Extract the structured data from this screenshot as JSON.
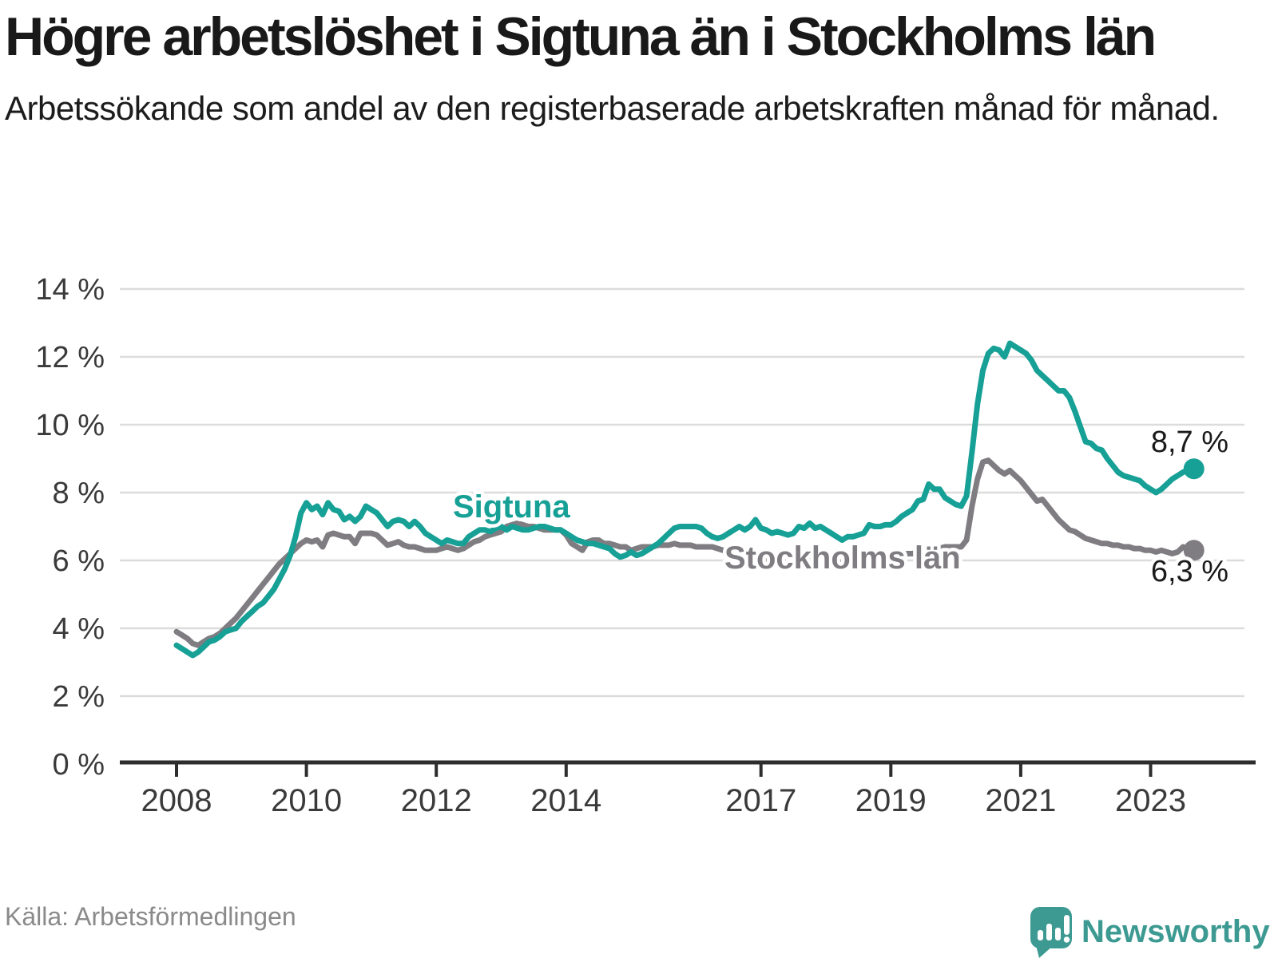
{
  "header": {
    "title": "Högre arbetslöshet i Sigtuna än i Stockholms län",
    "subtitle": "Arbetssökande som andel av den registerbaserade arbetskraften månad för månad."
  },
  "footer": {
    "source": "Källa: Arbetsförmedlingen",
    "logo_text": "Newsworthy"
  },
  "colors": {
    "sigtuna": "#16a096",
    "stockholm": "#7f7d81",
    "gridline": "#dcdcdc",
    "axis": "#2d2d2d",
    "tick_label": "#3a3a3a",
    "value_label": "#1a1a1a",
    "source_text": "#8a8a8a",
    "logo_teal": "#3d9a92"
  },
  "chart_data": {
    "type": "line",
    "title": "Högre arbetslöshet i Sigtuna än i Stockholms län",
    "subtitle": "Arbetssökande som andel av den registerbaserade arbetskraften månad för månad.",
    "x_unit": "month",
    "x_start_year": 2008,
    "x_start_month": 1,
    "x_end_year": 2023,
    "x_end_month": 9,
    "ylim": [
      0,
      14
    ],
    "grid": true,
    "x_tick_years": [
      2008,
      2010,
      2012,
      2014,
      2017,
      2019,
      2021,
      2023
    ],
    "y_tick_values": [
      14,
      12,
      10,
      8,
      6,
      4,
      2,
      0
    ],
    "y_tick_labels": [
      "14 %",
      "12 %",
      "10 %",
      "8 %",
      "6 %",
      "4 %",
      "2 %",
      "0 %"
    ],
    "series": [
      {
        "name": "Sigtuna",
        "color": "#16a096",
        "end_label": "8,7 %",
        "end_value": 8.7,
        "values": [
          3.5,
          3.4,
          3.3,
          3.2,
          3.3,
          3.45,
          3.6,
          3.65,
          3.75,
          3.9,
          3.95,
          4.0,
          4.2,
          4.35,
          4.5,
          4.65,
          4.75,
          4.95,
          5.15,
          5.45,
          5.75,
          6.15,
          6.7,
          7.4,
          7.7,
          7.5,
          7.6,
          7.35,
          7.7,
          7.5,
          7.45,
          7.2,
          7.3,
          7.15,
          7.3,
          7.6,
          7.5,
          7.4,
          7.2,
          7.0,
          7.15,
          7.2,
          7.15,
          7.0,
          7.15,
          7.0,
          6.8,
          6.7,
          6.6,
          6.5,
          6.6,
          6.55,
          6.5,
          6.5,
          6.7,
          6.8,
          6.9,
          6.9,
          6.85,
          6.95,
          7.0,
          6.9,
          7.0,
          6.95,
          6.9,
          6.9,
          6.95,
          7.0,
          7.0,
          6.95,
          6.9,
          6.9,
          6.8,
          6.7,
          6.6,
          6.55,
          6.5,
          6.5,
          6.45,
          6.4,
          6.35,
          6.2,
          6.1,
          6.15,
          6.25,
          6.15,
          6.2,
          6.3,
          6.4,
          6.5,
          6.65,
          6.8,
          6.95,
          7.0,
          7.0,
          7.0,
          7.0,
          6.95,
          6.8,
          6.7,
          6.65,
          6.7,
          6.8,
          6.9,
          7.0,
          6.9,
          7.0,
          7.2,
          6.95,
          6.9,
          6.8,
          6.85,
          6.8,
          6.75,
          6.8,
          7.0,
          6.95,
          7.1,
          6.95,
          7.0,
          6.9,
          6.8,
          6.7,
          6.6,
          6.7,
          6.7,
          6.75,
          6.8,
          7.05,
          7.0,
          7.0,
          7.05,
          7.05,
          7.15,
          7.3,
          7.4,
          7.5,
          7.75,
          7.8,
          8.25,
          8.1,
          8.1,
          7.85,
          7.75,
          7.65,
          7.6,
          7.9,
          9.2,
          10.6,
          11.6,
          12.1,
          12.25,
          12.2,
          12.0,
          12.4,
          12.3,
          12.2,
          12.1,
          11.9,
          11.6,
          11.45,
          11.3,
          11.15,
          11.0,
          11.0,
          10.8,
          10.4,
          9.95,
          9.5,
          9.45,
          9.3,
          9.25,
          9.0,
          8.8,
          8.6,
          8.5,
          8.45,
          8.4,
          8.35,
          8.2,
          8.1,
          8.0,
          8.1,
          8.25,
          8.4,
          8.5,
          8.6,
          8.65,
          8.7
        ]
      },
      {
        "name": "Stockholms län",
        "color": "#7f7d81",
        "end_label": "6,3 %",
        "end_value": 6.3,
        "values": [
          3.9,
          3.8,
          3.7,
          3.55,
          3.5,
          3.6,
          3.7,
          3.75,
          3.85,
          4.0,
          4.15,
          4.3,
          4.5,
          4.7,
          4.9,
          5.1,
          5.3,
          5.5,
          5.7,
          5.9,
          6.05,
          6.2,
          6.35,
          6.5,
          6.6,
          6.55,
          6.6,
          6.4,
          6.75,
          6.8,
          6.75,
          6.7,
          6.7,
          6.5,
          6.8,
          6.8,
          6.8,
          6.75,
          6.6,
          6.45,
          6.5,
          6.55,
          6.45,
          6.4,
          6.4,
          6.35,
          6.3,
          6.3,
          6.3,
          6.35,
          6.4,
          6.35,
          6.3,
          6.35,
          6.45,
          6.55,
          6.6,
          6.7,
          6.75,
          6.8,
          6.85,
          7.0,
          7.05,
          7.1,
          7.05,
          7.0,
          7.0,
          6.95,
          6.9,
          6.9,
          6.9,
          6.9,
          6.75,
          6.5,
          6.4,
          6.3,
          6.55,
          6.6,
          6.6,
          6.5,
          6.5,
          6.45,
          6.4,
          6.4,
          6.3,
          6.35,
          6.4,
          6.4,
          6.4,
          6.45,
          6.45,
          6.45,
          6.5,
          6.45,
          6.45,
          6.45,
          6.4,
          6.4,
          6.4,
          6.4,
          6.35,
          6.3,
          6.3,
          6.3,
          6.25,
          6.2,
          6.15,
          6.1,
          6.05,
          6.0,
          6.0,
          5.95,
          5.95,
          5.95,
          5.95,
          5.95,
          6.0,
          6.0,
          6.0,
          6.0,
          6.0,
          6.0,
          5.95,
          5.95,
          5.95,
          6.0,
          6.0,
          6.0,
          6.0,
          6.05,
          6.05,
          6.05,
          6.1,
          6.1,
          6.15,
          6.2,
          6.2,
          6.25,
          6.3,
          6.3,
          6.35,
          6.35,
          6.4,
          6.4,
          6.4,
          6.4,
          6.6,
          7.6,
          8.4,
          8.9,
          8.95,
          8.8,
          8.65,
          8.55,
          8.65,
          8.5,
          8.35,
          8.15,
          7.95,
          7.75,
          7.8,
          7.6,
          7.4,
          7.2,
          7.05,
          6.9,
          6.85,
          6.75,
          6.65,
          6.6,
          6.55,
          6.5,
          6.5,
          6.45,
          6.45,
          6.4,
          6.4,
          6.35,
          6.35,
          6.3,
          6.3,
          6.25,
          6.3,
          6.25,
          6.2,
          6.25,
          6.4,
          6.35,
          6.3
        ]
      }
    ],
    "legend_position": "inline-labels"
  }
}
